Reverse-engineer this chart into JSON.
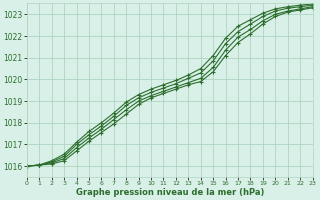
{
  "title": "Graphe pression niveau de la mer (hPa)",
  "bg_color": "#d8f0e8",
  "grid_color": "#b0d4c0",
  "line_color": "#2d6e2d",
  "marker_color": "#2d6e2d",
  "xlim": [
    0,
    23
  ],
  "ylim": [
    1015.5,
    1023.5
  ],
  "xticks": [
    0,
    1,
    2,
    3,
    4,
    5,
    6,
    7,
    8,
    9,
    10,
    11,
    12,
    13,
    14,
    15,
    16,
    17,
    18,
    19,
    20,
    21,
    22,
    23
  ],
  "yticks": [
    1016,
    1017,
    1018,
    1019,
    1020,
    1021,
    1022,
    1023
  ],
  "series": [
    [
      1016.0,
      1016.05,
      1016.1,
      1016.25,
      1016.7,
      1017.15,
      1017.55,
      1017.95,
      1018.4,
      1018.85,
      1019.15,
      1019.35,
      1019.55,
      1019.75,
      1019.9,
      1020.35,
      1021.1,
      1021.7,
      1022.1,
      1022.55,
      1022.9,
      1023.1,
      1023.2,
      1023.3
    ],
    [
      1016.0,
      1016.05,
      1016.15,
      1016.35,
      1016.85,
      1017.3,
      1017.7,
      1018.15,
      1018.6,
      1019.0,
      1019.25,
      1019.45,
      1019.65,
      1019.85,
      1020.05,
      1020.55,
      1021.35,
      1021.95,
      1022.3,
      1022.7,
      1023.0,
      1023.15,
      1023.25,
      1023.35
    ],
    [
      1016.0,
      1016.05,
      1016.2,
      1016.45,
      1017.0,
      1017.45,
      1017.85,
      1018.3,
      1018.8,
      1019.15,
      1019.4,
      1019.6,
      1019.8,
      1020.05,
      1020.3,
      1020.85,
      1021.65,
      1022.2,
      1022.55,
      1022.9,
      1023.15,
      1023.28,
      1023.35,
      1023.42
    ],
    [
      1016.0,
      1016.05,
      1016.25,
      1016.55,
      1017.1,
      1017.6,
      1018.0,
      1018.45,
      1018.95,
      1019.3,
      1019.55,
      1019.75,
      1019.95,
      1020.2,
      1020.5,
      1021.1,
      1021.9,
      1022.45,
      1022.75,
      1023.05,
      1023.25,
      1023.35,
      1023.42,
      1023.48
    ]
  ]
}
